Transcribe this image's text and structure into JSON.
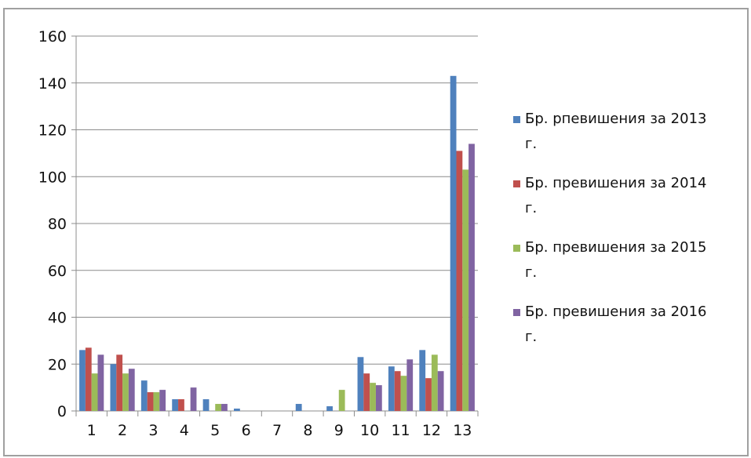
{
  "chart_data": {
    "type": "bar",
    "title": "",
    "xlabel": "",
    "ylabel": "",
    "categories": [
      "1",
      "2",
      "3",
      "4",
      "5",
      "6",
      "7",
      "8",
      "9",
      "10",
      "11",
      "12",
      "13"
    ],
    "ylim": [
      0,
      160
    ],
    "yticks": [
      "0",
      "20",
      "40",
      "60",
      "80",
      "100",
      "120",
      "140",
      "160"
    ],
    "grid": true,
    "legend_position": "right",
    "series": [
      {
        "name": "Бр. рпевишения за 2013 г.",
        "color": "#4f81bd",
        "values": [
          26,
          20,
          13,
          5,
          5,
          1,
          0,
          3,
          2,
          23,
          19,
          26,
          143
        ]
      },
      {
        "name": "Бр. превишения за 2014 г.",
        "color": "#c0504d",
        "values": [
          27,
          24,
          8,
          5,
          0,
          0,
          0,
          0,
          0,
          16,
          17,
          14,
          111
        ]
      },
      {
        "name": "Бр. превишения за 2015 г.",
        "color": "#9bbb59",
        "values": [
          16,
          16,
          8,
          0,
          3,
          0,
          0,
          0,
          9,
          12,
          15,
          24,
          103
        ]
      },
      {
        "name": "Бр. превишения за 2016 г.",
        "color": "#8064a2",
        "values": [
          24,
          18,
          9,
          10,
          3,
          0,
          0,
          0,
          0,
          11,
          22,
          17,
          114
        ]
      }
    ],
    "legend_lines": [
      [
        "Бр. рпевишения за 2013",
        "г."
      ],
      [
        "Бр. превишения за 2014",
        "г."
      ],
      [
        "Бр. превишения за 2015",
        "г."
      ],
      [
        "Бр. превишения за 2016",
        "г."
      ]
    ]
  }
}
